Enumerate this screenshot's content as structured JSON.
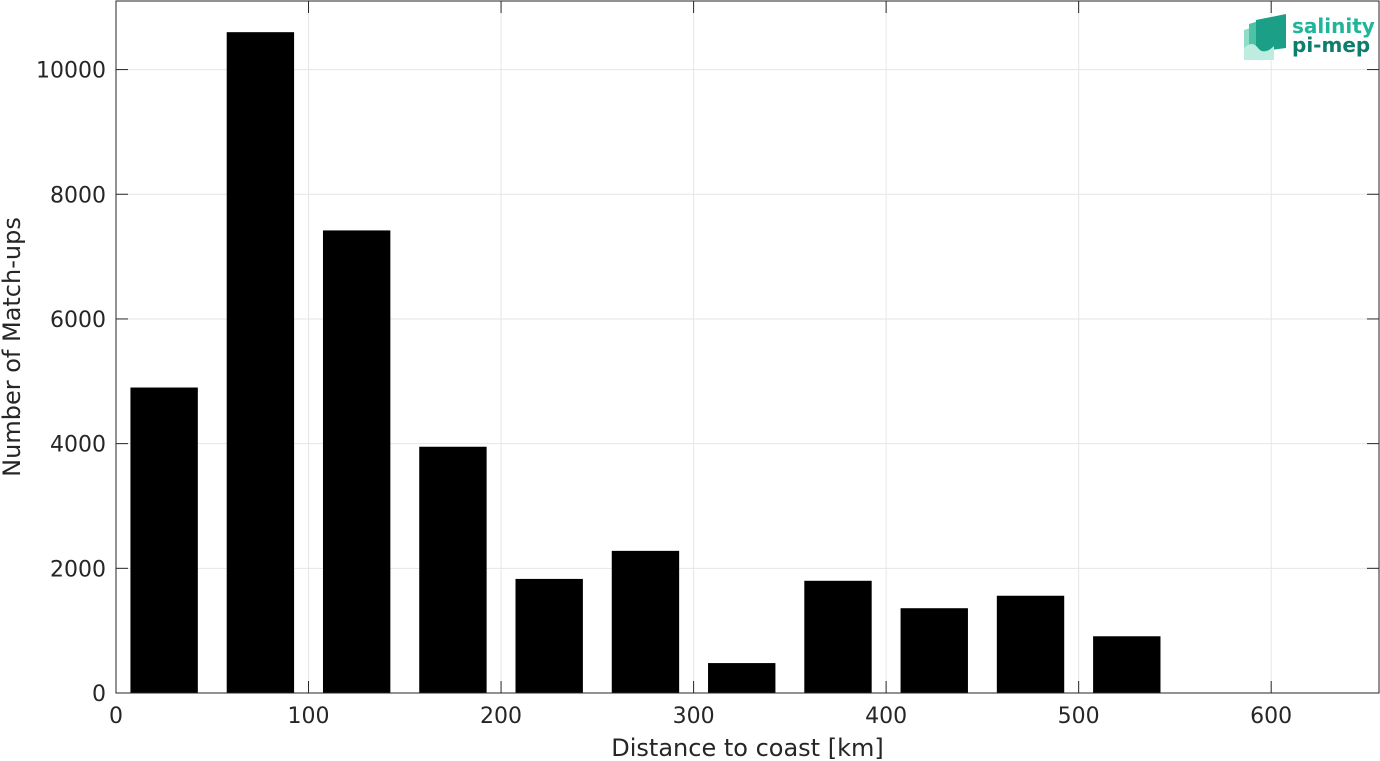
{
  "chart_data": {
    "type": "bar",
    "xlabel": "Distance to coast [km]",
    "ylabel": "Number of Match-ups",
    "xlim": [
      0,
      656
    ],
    "ylim": [
      0,
      11100
    ],
    "bar_width": 35,
    "x": [
      25,
      75,
      125,
      175,
      225,
      275,
      325,
      375,
      425,
      475,
      525,
      575,
      625
    ],
    "values": [
      4900,
      10600,
      7420,
      3950,
      1830,
      2280,
      480,
      1800,
      1360,
      1560,
      910,
      0,
      0
    ],
    "xticks": [
      0,
      100,
      200,
      300,
      400,
      500,
      600
    ],
    "yticks": [
      0,
      2000,
      4000,
      6000,
      8000,
      10000
    ],
    "grid": true,
    "colors": {
      "bar": "#000000",
      "grid": "#e6e6e6",
      "axis": "#262626"
    }
  },
  "logo": {
    "line1": "salinity",
    "line2": "pi-mep",
    "color1": "#1fb59a",
    "color2": "#0e7d6c"
  }
}
